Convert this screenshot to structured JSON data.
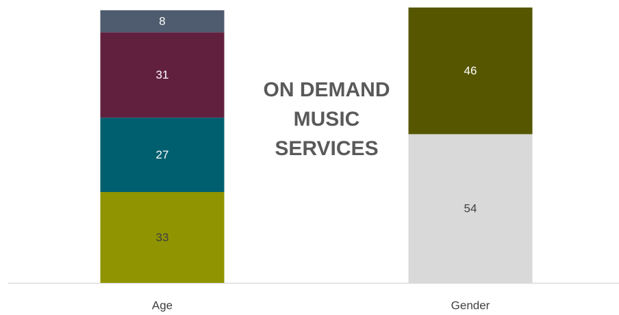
{
  "chart_data": {
    "type": "stacked_bar",
    "title_lines": [
      "ON DEMAND",
      "MUSIC",
      "SERVICES"
    ],
    "categories": [
      "Age",
      "Gender"
    ],
    "series": [
      {
        "color": "#8f9400",
        "values": [
          33,
          null
        ]
      },
      {
        "color": "#005f6e",
        "values": [
          27,
          null
        ]
      },
      {
        "color": "#62203f",
        "values": [
          31,
          null
        ]
      },
      {
        "color": "#4f5b6e",
        "values": [
          8,
          null
        ]
      },
      {
        "color": "#d9d9d9",
        "values": [
          null,
          54
        ]
      },
      {
        "color": "#565600",
        "values": [
          null,
          46
        ]
      }
    ],
    "ylim": [
      0,
      100
    ]
  }
}
